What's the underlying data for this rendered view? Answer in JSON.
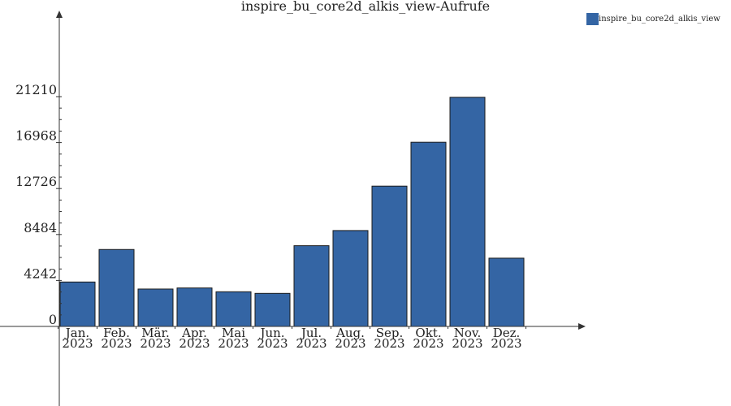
{
  "chart_data": {
    "type": "bar",
    "title": "inspire_bu_core2d_alkis_view-Aufrufe",
    "xlabel": "",
    "ylabel": "",
    "categories": [
      [
        "Jan.",
        "2023"
      ],
      [
        "Feb.",
        "2023"
      ],
      [
        "Mär.",
        "2023"
      ],
      [
        "Apr.",
        "2023"
      ],
      [
        "Mai",
        "2023"
      ],
      [
        "Jun.",
        "2023"
      ],
      [
        "Jul.",
        "2023"
      ],
      [
        "Aug.",
        "2023"
      ],
      [
        "Sep.",
        "2023"
      ],
      [
        "Okt.",
        "2023"
      ],
      [
        "Nov.",
        "2023"
      ],
      [
        "Dez.",
        "2023"
      ]
    ],
    "series": [
      {
        "name": "inspire_bu_core2d_alkis_view",
        "color": "#3465a4",
        "values": [
          4100,
          7100,
          3450,
          3550,
          3200,
          3050,
          7450,
          8850,
          12950,
          17000,
          21150,
          6300
        ]
      }
    ],
    "yticks": [
      0,
      4242,
      8484,
      12726,
      16968,
      21210
    ],
    "ytick_labels": [
      "0",
      "4242",
      "8484",
      "12726",
      "16968",
      "21210"
    ],
    "ylim": [
      0,
      27000
    ],
    "legend": "top-right",
    "grid": false
  }
}
